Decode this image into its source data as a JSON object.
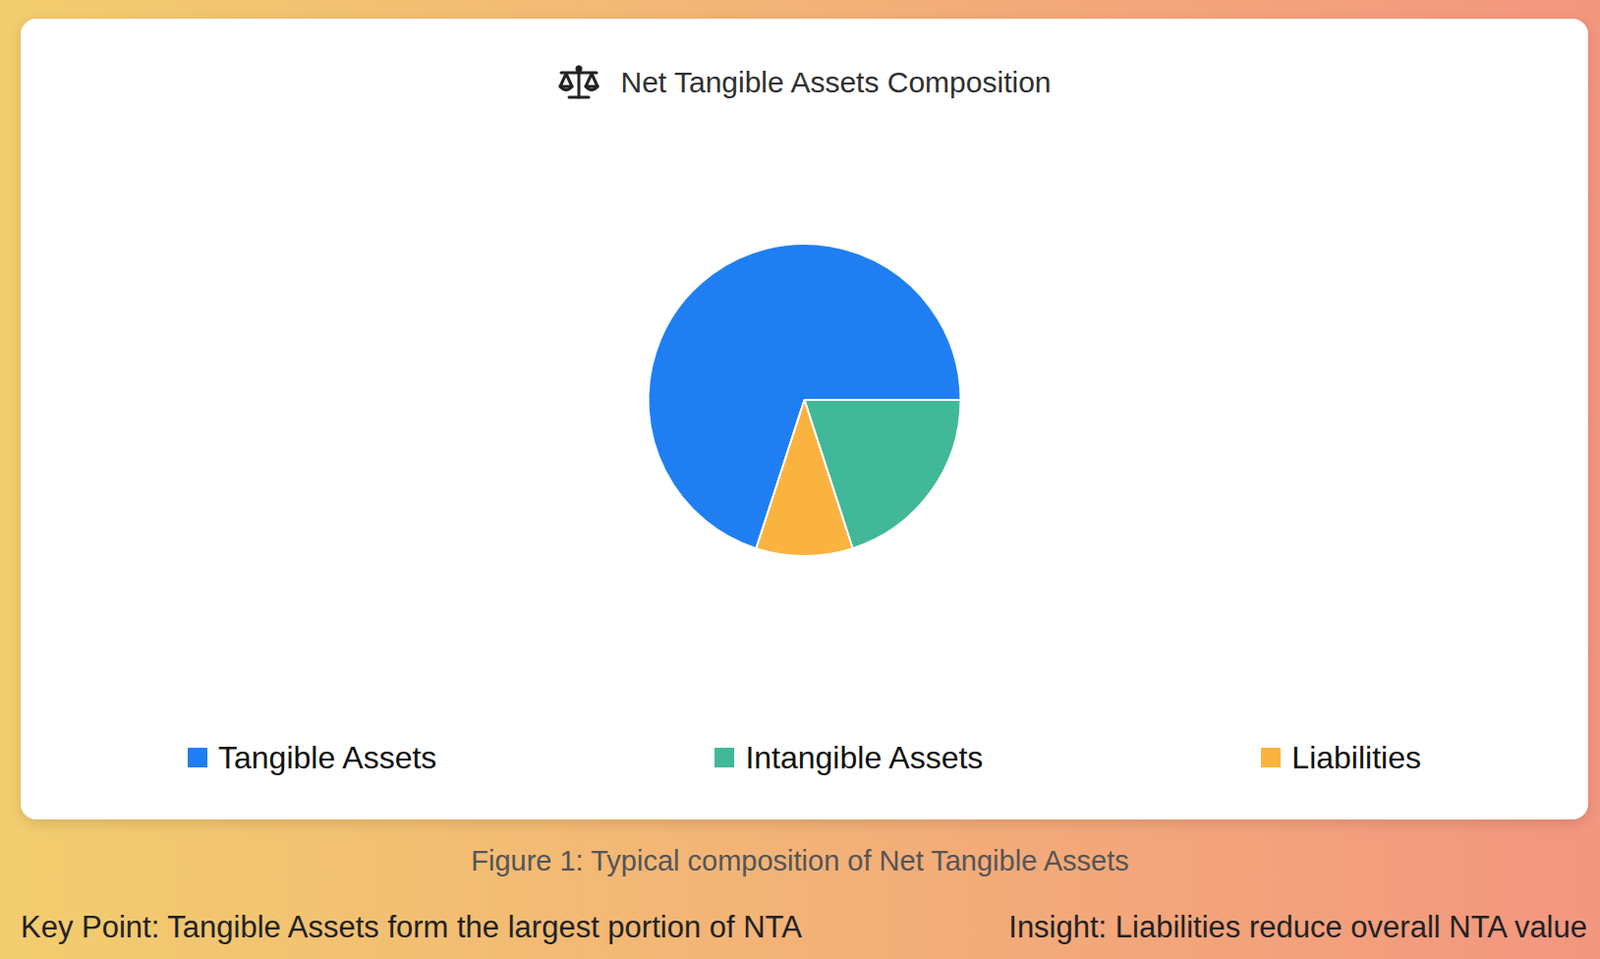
{
  "chart_data": {
    "type": "pie",
    "title": "Net Tangible Assets Composition",
    "categories": [
      "Tangible Assets",
      "Intangible Assets",
      "Liabilities"
    ],
    "values": [
      70,
      20,
      10
    ],
    "colors": [
      "#1f7ff2",
      "#41b898",
      "#fbb33f"
    ],
    "legend": "bottom",
    "caption": "Figure 1: Typical composition of Net Tangible Assets",
    "annotations": [
      "Key Point: Tangible Assets form the largest portion of NTA",
      "Insight: Liabilities reduce overall NTA value"
    ]
  }
}
